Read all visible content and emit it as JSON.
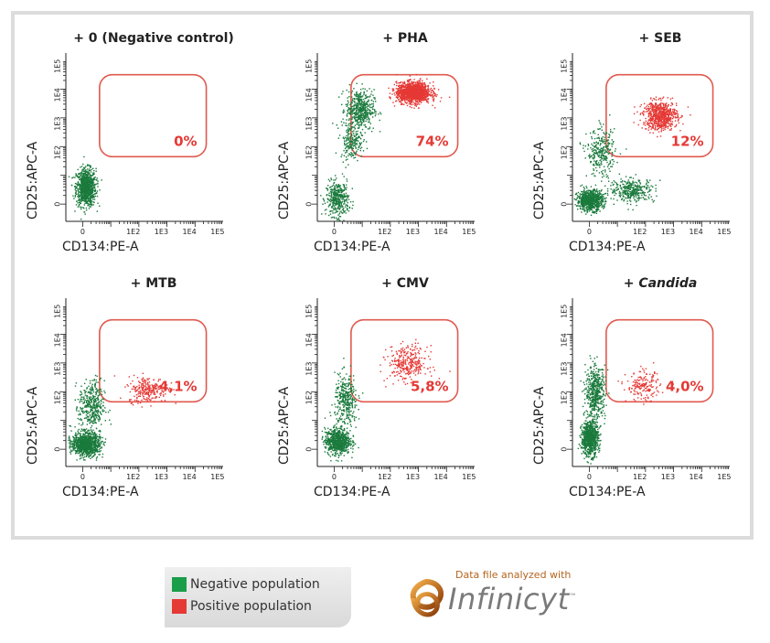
{
  "chart_data": [
    {
      "type": "scatter",
      "title": "+ 0 (Negative control)",
      "title_italic": "",
      "xlabel": "CD134:PE-A",
      "ylabel": "CD25:APC-A",
      "xticks": [
        "0",
        "1E2",
        "1E3",
        "1E4",
        "1E5"
      ],
      "yticks": [
        "0",
        "1E2",
        "1E3",
        "1E4",
        "1E5"
      ],
      "gate_percent": "0%",
      "series": [
        {
          "name": "Negative population",
          "color": "#1a7a3c",
          "clusters": [
            {
              "cx": 0.1,
              "cy": 0.6,
              "sx": 0.35,
              "sy": 0.65,
              "n": 900
            }
          ]
        },
        {
          "name": "Positive population",
          "color": "#e53935",
          "clusters": []
        }
      ]
    },
    {
      "type": "scatter",
      "title": "+ PHA",
      "title_italic": "",
      "xlabel": "CD134:PE-A",
      "ylabel": "CD25:APC-A",
      "xticks": [
        "0",
        "1E2",
        "1E3",
        "1E4",
        "1E5"
      ],
      "yticks": [
        "0",
        "1E2",
        "1E3",
        "1E4",
        "1E5"
      ],
      "gate_percent": "74%",
      "series": [
        {
          "name": "Negative population",
          "color": "#1a7a3c",
          "clusters": [
            {
              "cx": 0.1,
              "cy": 0.2,
              "sx": 0.4,
              "sy": 0.6,
              "n": 400
            },
            {
              "cx": 0.9,
              "cy": 3.3,
              "sx": 0.5,
              "sy": 0.7,
              "n": 500
            },
            {
              "cx": 0.6,
              "cy": 2.2,
              "sx": 0.4,
              "sy": 0.6,
              "n": 200
            }
          ]
        },
        {
          "name": "Positive population",
          "color": "#e53935",
          "clusters": [
            {
              "cx": 2.8,
              "cy": 3.9,
              "sx": 0.6,
              "sy": 0.35,
              "n": 1400
            }
          ]
        }
      ]
    },
    {
      "type": "scatter",
      "title": "+ SEB",
      "title_italic": "",
      "xlabel": "CD134:PE-A",
      "ylabel": "CD25:APC-A",
      "xticks": [
        "0",
        "1E2",
        "1E3",
        "1E4",
        "1E5"
      ],
      "yticks": [
        "0",
        "1E2",
        "1E3",
        "1E4",
        "1E5"
      ],
      "gate_percent": "12%",
      "series": [
        {
          "name": "Negative population",
          "color": "#1a7a3c",
          "clusters": [
            {
              "cx": 0.0,
              "cy": 0.15,
              "sx": 0.45,
              "sy": 0.35,
              "n": 800
            },
            {
              "cx": 1.5,
              "cy": 0.5,
              "sx": 0.8,
              "sy": 0.4,
              "n": 350
            },
            {
              "cx": 0.4,
              "cy": 1.8,
              "sx": 0.5,
              "sy": 0.8,
              "n": 300
            }
          ]
        },
        {
          "name": "Positive population",
          "color": "#e53935",
          "clusters": [
            {
              "cx": 2.5,
              "cy": 3.1,
              "sx": 0.6,
              "sy": 0.5,
              "n": 700
            }
          ]
        }
      ]
    },
    {
      "type": "scatter",
      "title": "+ MTB",
      "title_italic": "",
      "xlabel": "CD134:PE-A",
      "ylabel": "CD25:APC-A",
      "xticks": [
        "0",
        "1E2",
        "1E3",
        "1E4",
        "1E5"
      ],
      "yticks": [
        "0",
        "1E2",
        "1E3",
        "1E4",
        "1E5"
      ],
      "gate_percent": "4,1%",
      "series": [
        {
          "name": "Negative population",
          "color": "#1a7a3c",
          "clusters": [
            {
              "cx": 0.1,
              "cy": 0.2,
              "sx": 0.5,
              "sy": 0.4,
              "n": 1000
            },
            {
              "cx": 0.3,
              "cy": 1.5,
              "sx": 0.45,
              "sy": 0.9,
              "n": 400
            }
          ]
        },
        {
          "name": "Positive population",
          "color": "#e53935",
          "clusters": [
            {
              "cx": 2.3,
              "cy": 2.1,
              "sx": 0.7,
              "sy": 0.45,
              "n": 260
            }
          ]
        }
      ]
    },
    {
      "type": "scatter",
      "title": "+ CMV",
      "title_italic": "",
      "xlabel": "CD134:PE-A",
      "ylabel": "CD25:APC-A",
      "xticks": [
        "0",
        "1E2",
        "1E3",
        "1E4",
        "1E5"
      ],
      "yticks": [
        "0",
        "1E2",
        "1E3",
        "1E4",
        "1E5"
      ],
      "gate_percent": "5,8%",
      "series": [
        {
          "name": "Negative population",
          "color": "#1a7a3c",
          "clusters": [
            {
              "cx": 0.1,
              "cy": 0.3,
              "sx": 0.45,
              "sy": 0.45,
              "n": 700
            },
            {
              "cx": 0.4,
              "cy": 1.7,
              "sx": 0.4,
              "sy": 0.9,
              "n": 350
            }
          ]
        },
        {
          "name": "Positive population",
          "color": "#e53935",
          "clusters": [
            {
              "cx": 2.6,
              "cy": 3.0,
              "sx": 0.7,
              "sy": 0.6,
              "n": 320
            }
          ]
        }
      ]
    },
    {
      "type": "scatter",
      "title": "+ ",
      "title_italic": "Candida",
      "xlabel": "CD134:PE-A",
      "ylabel": "CD25:APC-A",
      "xticks": [
        "0",
        "1E2",
        "1E3",
        "1E4",
        "1E5"
      ],
      "yticks": [
        "0",
        "1E2",
        "1E3",
        "1E4",
        "1E5"
      ],
      "gate_percent": "4,0%",
      "series": [
        {
          "name": "Negative population",
          "color": "#1a7a3c",
          "clusters": [
            {
              "cx": 0.0,
              "cy": 0.4,
              "sx": 0.3,
              "sy": 0.6,
              "n": 800
            },
            {
              "cx": 0.2,
              "cy": 2.0,
              "sx": 0.35,
              "sy": 0.9,
              "n": 500
            }
          ]
        },
        {
          "name": "Positive population",
          "color": "#e53935",
          "clusters": [
            {
              "cx": 1.9,
              "cy": 2.2,
              "sx": 0.6,
              "sy": 0.5,
              "n": 180
            }
          ]
        }
      ]
    }
  ],
  "legend": [
    {
      "label": "Negative population",
      "color": "#1a9e4a"
    },
    {
      "label": "Positive population",
      "color": "#e53935"
    }
  ],
  "brand": {
    "caption": "Data file analyzed with",
    "name": "Infinicyt",
    "tm": "™"
  }
}
